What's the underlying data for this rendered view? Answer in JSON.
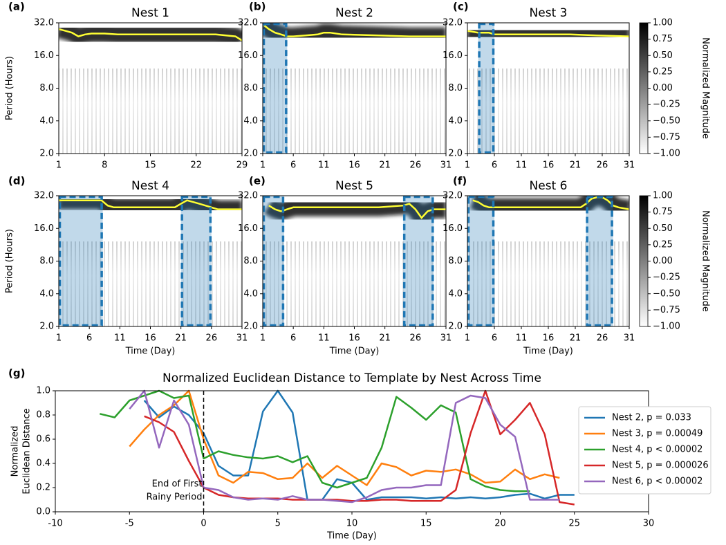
{
  "chart_data": [
    {
      "type": "heatmap",
      "panel_label": "(a)",
      "title": "Nest 1",
      "ylabel": "Period (Hours)",
      "xlim": [
        1,
        29
      ],
      "xticks": [
        1,
        8,
        15,
        22,
        29
      ],
      "log_y": true,
      "ylim": [
        2,
        32
      ],
      "yticks": [
        {
          "value": 2,
          "label": "2.0"
        },
        {
          "value": 4,
          "label": "4.0"
        },
        {
          "value": 8,
          "label": "8.0"
        },
        {
          "value": 16,
          "label": "16.0"
        },
        {
          "value": 32,
          "label": "32.0"
        }
      ],
      "ridge": {
        "color": "#ffff33",
        "x": [
          1,
          2,
          3,
          4,
          5,
          6,
          8,
          10,
          15,
          20,
          25,
          28,
          29
        ],
        "values": [
          28,
          27,
          26,
          24,
          25,
          25.5,
          25.5,
          25,
          25,
          25,
          25,
          24,
          22
        ]
      },
      "highlights": []
    },
    {
      "type": "heatmap",
      "panel_label": "(b)",
      "title": "Nest 2",
      "xlim": [
        1,
        31
      ],
      "xticks": [
        1,
        6,
        11,
        16,
        21,
        26,
        31
      ],
      "log_y": true,
      "ylim": [
        2,
        32
      ],
      "yticks": [
        {
          "value": 2,
          "label": "2.0"
        },
        {
          "value": 4,
          "label": "4.0"
        },
        {
          "value": 8,
          "label": "8.0"
        },
        {
          "value": 16,
          "label": "16.0"
        },
        {
          "value": 32,
          "label": "32.0"
        }
      ],
      "ridge": {
        "color": "#ffff33",
        "x": [
          1,
          2,
          3,
          4,
          5,
          6,
          8,
          10,
          11,
          12,
          14,
          20,
          25,
          31
        ],
        "values": [
          31,
          28,
          26,
          25,
          24,
          24,
          24.5,
          25,
          26,
          26,
          25,
          24.5,
          24,
          24
        ]
      },
      "highlights": [
        [
          1,
          5
        ]
      ],
      "highlight_color": "#1f77b4"
    },
    {
      "type": "heatmap",
      "panel_label": "(c)",
      "title": "Nest 3",
      "xlim": [
        1,
        31
      ],
      "xticks": [
        1,
        6,
        11,
        16,
        21,
        26,
        31
      ],
      "log_y": true,
      "ylim": [
        2,
        32
      ],
      "yticks": [
        {
          "value": 2,
          "label": "2.0"
        },
        {
          "value": 4,
          "label": "4.0"
        },
        {
          "value": 8,
          "label": "8.0"
        },
        {
          "value": 16,
          "label": "16.0"
        },
        {
          "value": 32,
          "label": "32.0"
        }
      ],
      "ridge": {
        "color": "#ffff33",
        "x": [
          1,
          3,
          5,
          6,
          10,
          15,
          20,
          25,
          31
        ],
        "values": [
          27,
          26,
          26,
          25,
          25,
          25,
          25,
          24.5,
          24
        ]
      },
      "highlights": [
        [
          3,
          6
        ]
      ],
      "highlight_color": "#1f77b4",
      "colorbar": {
        "label": "Normalized Magnitude",
        "lim": [
          -1,
          1
        ],
        "ticks": [
          {
            "value": 1,
            "label": "1.00"
          },
          {
            "value": 0.75,
            "label": "0.75"
          },
          {
            "value": 0.5,
            "label": "0.50"
          },
          {
            "value": 0.25,
            "label": "0.25"
          },
          {
            "value": 0,
            "label": "0.00"
          },
          {
            "value": -0.25,
            "label": "−0.25"
          },
          {
            "value": -0.5,
            "label": "−0.50"
          },
          {
            "value": -0.75,
            "label": "−0.75"
          },
          {
            "value": -1,
            "label": "−1.00"
          }
        ]
      }
    },
    {
      "type": "heatmap",
      "panel_label": "(d)",
      "title": "Nest 4",
      "ylabel": "Period (Hours)",
      "xlabel": "Time (Day)",
      "xlim": [
        1,
        31
      ],
      "xticks": [
        1,
        6,
        11,
        16,
        21,
        26,
        31
      ],
      "log_y": true,
      "ylim": [
        2,
        32
      ],
      "yticks": [
        {
          "value": 2,
          "label": "2.0"
        },
        {
          "value": 4,
          "label": "4.0"
        },
        {
          "value": 8,
          "label": "8.0"
        },
        {
          "value": 16,
          "label": "16.0"
        },
        {
          "value": 32,
          "label": "32.0"
        }
      ],
      "ridge": {
        "color": "#ffff33",
        "x": [
          1,
          2,
          4,
          6,
          8,
          9,
          10,
          15,
          20,
          21,
          22,
          23,
          24,
          25,
          26,
          27,
          31
        ],
        "values": [
          29,
          29,
          29,
          29,
          29,
          26,
          25,
          25,
          25,
          27,
          29,
          28,
          27,
          26,
          25,
          24,
          24
        ]
      },
      "highlights": [
        [
          1,
          8.2
        ],
        [
          21,
          26
        ]
      ],
      "highlight_color": "#1f77b4"
    },
    {
      "type": "heatmap",
      "panel_label": "(e)",
      "title": "Nest 5",
      "xlabel": "Time (Day)",
      "xlim": [
        1,
        31
      ],
      "xticks": [
        1,
        6,
        11,
        16,
        21,
        26,
        31
      ],
      "log_y": true,
      "ylim": [
        2,
        32
      ],
      "yticks": [
        {
          "value": 2,
          "label": "2.0"
        },
        {
          "value": 4,
          "label": "4.0"
        },
        {
          "value": 8,
          "label": "8.0"
        },
        {
          "value": 16,
          "label": "16.0"
        },
        {
          "value": 32,
          "label": "32.0"
        }
      ],
      "ridge": {
        "color": "#ffff33",
        "x": [
          2,
          3,
          4,
          5,
          6,
          10,
          15,
          20,
          24,
          25,
          26,
          27,
          28,
          29,
          31
        ],
        "values": [
          26,
          24,
          23,
          24,
          25,
          25,
          25,
          25,
          26,
          27,
          24,
          20,
          23,
          24,
          24
        ]
      },
      "highlights": [
        [
          1,
          4.5
        ],
        [
          24,
          29
        ]
      ],
      "highlight_color": "#1f77b4"
    },
    {
      "type": "heatmap",
      "panel_label": "(f)",
      "title": "Nest 6",
      "xlabel": "Time (Day)",
      "xlim": [
        1,
        31
      ],
      "xticks": [
        1,
        6,
        11,
        16,
        21,
        26,
        31
      ],
      "log_y": true,
      "ylim": [
        2,
        32
      ],
      "yticks": [
        {
          "value": 2,
          "label": "2.0"
        },
        {
          "value": 4,
          "label": "4.0"
        },
        {
          "value": 8,
          "label": "8.0"
        },
        {
          "value": 16,
          "label": "16.0"
        },
        {
          "value": 32,
          "label": "32.0"
        }
      ],
      "ridge": {
        "color": "#ffff33",
        "x": [
          2,
          3,
          4,
          5,
          6,
          10,
          15,
          20,
          22,
          23,
          24,
          25,
          26,
          27,
          28,
          29,
          31
        ],
        "values": [
          29,
          28,
          26,
          25,
          25,
          25,
          25,
          25,
          25,
          27,
          30,
          31,
          31,
          29,
          26,
          25,
          24
        ]
      },
      "highlights": [
        [
          1,
          6
        ],
        [
          23,
          28
        ]
      ],
      "highlight_color": "#1f77b4",
      "colorbar": {
        "label": "Normalized Magnitude",
        "lim": [
          -1,
          1
        ],
        "ticks": [
          {
            "value": 1,
            "label": "1.00"
          },
          {
            "value": 0.75,
            "label": "0.75"
          },
          {
            "value": 0.5,
            "label": "0.50"
          },
          {
            "value": 0.25,
            "label": "0.25"
          },
          {
            "value": 0,
            "label": "0.00"
          },
          {
            "value": -0.25,
            "label": "−0.25"
          },
          {
            "value": -0.5,
            "label": "−0.50"
          },
          {
            "value": -0.75,
            "label": "−0.75"
          },
          {
            "value": -1,
            "label": "−1.00"
          }
        ]
      }
    },
    {
      "type": "line",
      "panel_label": "(g)",
      "title": "Normalized Euclidean Distance to Template by Nest Across Time",
      "xlabel": "Time (Day)",
      "ylabel": [
        "Normalized",
        "Euclidean Distance"
      ],
      "xlim": [
        -10,
        30
      ],
      "xticks": [
        -10,
        -5,
        0,
        5,
        10,
        15,
        20,
        25,
        30
      ],
      "ylim": [
        0,
        1
      ],
      "yticks": [
        {
          "value": 0,
          "label": "0.0"
        },
        {
          "value": 0.2,
          "label": "0.2"
        },
        {
          "value": 0.4,
          "label": "0.4"
        },
        {
          "value": 0.6,
          "label": "0.6"
        },
        {
          "value": 0.8,
          "label": "0.8"
        },
        {
          "value": 1,
          "label": "1.0"
        }
      ],
      "vline": 0,
      "annotation": [
        "End of First",
        "Rainy Period"
      ],
      "legend": "right",
      "series": [
        {
          "name": "Nest 2, p = 0.033",
          "color": "#1f77b4",
          "x": [
            -4,
            -3,
            -2,
            -1,
            0,
            1,
            2,
            3,
            4,
            5,
            6,
            7,
            8,
            9,
            10,
            11,
            12,
            13,
            14,
            15,
            16,
            17,
            18,
            19,
            20,
            21,
            22,
            23,
            24,
            25
          ],
          "values": [
            0.92,
            0.78,
            0.87,
            0.8,
            0.65,
            0.38,
            0.3,
            0.3,
            0.83,
            1.0,
            0.82,
            0.1,
            0.1,
            0.27,
            0.24,
            0.1,
            0.12,
            0.12,
            0.12,
            0.11,
            0.12,
            0.11,
            0.12,
            0.11,
            0.12,
            0.14,
            0.15,
            0.11,
            0.14,
            0.14
          ]
        },
        {
          "name": "Nest 3, p = 0.00049",
          "color": "#ff7f0e",
          "x": [
            -5,
            -4,
            -3,
            -2,
            -1,
            0,
            1,
            2,
            3,
            4,
            5,
            6,
            7,
            8,
            9,
            10,
            11,
            12,
            13,
            14,
            15,
            16,
            17,
            18,
            19,
            20,
            21,
            22,
            23,
            24
          ],
          "values": [
            0.54,
            0.68,
            0.8,
            0.88,
            1.0,
            0.6,
            0.3,
            0.24,
            0.33,
            0.32,
            0.27,
            0.28,
            0.4,
            0.28,
            0.38,
            0.3,
            0.22,
            0.4,
            0.37,
            0.3,
            0.34,
            0.33,
            0.35,
            0.31,
            0.24,
            0.25,
            0.35,
            0.27,
            0.31,
            0.28
          ]
        },
        {
          "name": "Nest 4, p <  0.00002",
          "color": "#2ca02c",
          "x": [
            -7,
            -6,
            -5,
            -4,
            -3,
            -2,
            -1,
            0,
            1,
            2,
            3,
            4,
            5,
            6,
            7,
            8,
            9,
            10,
            11,
            12,
            13,
            14,
            15,
            16,
            17,
            18,
            19,
            20,
            21,
            22
          ],
          "values": [
            0.81,
            0.78,
            0.92,
            0.96,
            1.0,
            0.94,
            0.96,
            0.44,
            0.5,
            0.47,
            0.45,
            0.44,
            0.46,
            0.41,
            0.46,
            0.24,
            0.2,
            0.24,
            0.28,
            0.53,
            0.95,
            0.86,
            0.76,
            0.88,
            0.82,
            0.27,
            0.21,
            0.18,
            0.17,
            0.17
          ]
        },
        {
          "name": "Nest 5, p = 0.000026",
          "color": "#d62728",
          "x": [
            -4,
            -3,
            -2,
            -1,
            0,
            1,
            2,
            3,
            4,
            5,
            6,
            7,
            8,
            9,
            10,
            11,
            12,
            13,
            14,
            15,
            16,
            17,
            18,
            19,
            20,
            21,
            22,
            23,
            24,
            25
          ],
          "values": [
            0.79,
            0.74,
            0.66,
            0.42,
            0.2,
            0.14,
            0.12,
            0.11,
            0.11,
            0.11,
            0.1,
            0.1,
            0.1,
            0.1,
            0.09,
            0.09,
            0.1,
            0.1,
            0.09,
            0.09,
            0.09,
            0.18,
            0.65,
            1.0,
            0.64,
            0.76,
            0.9,
            0.64,
            0.08,
            0.06
          ]
        },
        {
          "name": "Nest 6, p <  0.00002",
          "color": "#9467bd",
          "x": [
            -5,
            -4,
            -3,
            -2,
            -1,
            0,
            1,
            2,
            3,
            4,
            5,
            6,
            7,
            8,
            9,
            10,
            11,
            12,
            13,
            14,
            15,
            16,
            17,
            18,
            19,
            20,
            21,
            22,
            23,
            24
          ],
          "values": [
            0.85,
            1.0,
            0.53,
            0.92,
            0.72,
            0.2,
            0.18,
            0.12,
            0.1,
            0.11,
            0.1,
            0.13,
            0.1,
            0.1,
            0.09,
            0.08,
            0.12,
            0.18,
            0.2,
            0.2,
            0.22,
            0.22,
            0.9,
            0.96,
            0.94,
            0.72,
            0.62,
            0.1,
            0.1,
            0.1
          ]
        }
      ]
    }
  ]
}
